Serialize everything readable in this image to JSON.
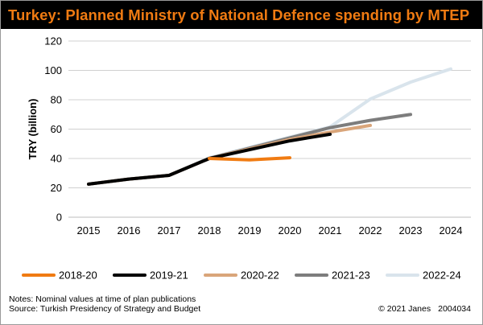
{
  "title": "Turkey: Planned Ministry of National Defence spending by MTEP",
  "notes": "Notes: Nominal values at time of plan publications",
  "source": "Source: Turkish Presidency of Strategy and Budget",
  "copyright": "© 2021 Janes",
  "image_code": "2004034",
  "chart_data": {
    "type": "line",
    "title": "Turkey: Planned Ministry of National Defence spending by MTEP",
    "xlabel": "",
    "ylabel": "TRY (billion)",
    "x": [
      "2015",
      "2016",
      "2017",
      "2018",
      "2019",
      "2020",
      "2021",
      "2022",
      "2023",
      "2024"
    ],
    "ylim": [
      0,
      120
    ],
    "yticks": [
      0,
      20,
      40,
      60,
      80,
      100,
      120
    ],
    "grid": "horizontal",
    "legend_position": "bottom",
    "series": [
      {
        "name": "2018-20",
        "color": "#f07b12",
        "x": [
          "2018",
          "2019",
          "2020"
        ],
        "values": [
          40,
          39,
          40.5
        ]
      },
      {
        "name": "2019-21",
        "color": "#000000",
        "x": [
          "2015",
          "2016",
          "2017",
          "2018",
          "2019",
          "2020",
          "2021"
        ],
        "values": [
          22.5,
          26,
          28.5,
          40,
          46,
          52,
          56.5
        ]
      },
      {
        "name": "2020-22",
        "color": "#d9a57a",
        "x": [
          "2015",
          "2016",
          "2017",
          "2018",
          "2019",
          "2020",
          "2021",
          "2022"
        ],
        "values": [
          22.5,
          26,
          28.5,
          40,
          46.5,
          53,
          58,
          62.5
        ]
      },
      {
        "name": "2021-23",
        "color": "#7d7d7d",
        "x": [
          "2015",
          "2016",
          "2017",
          "2018",
          "2019",
          "2020",
          "2021",
          "2022",
          "2023"
        ],
        "values": [
          22.5,
          26,
          28.5,
          40,
          47,
          54,
          61,
          66,
          70
        ]
      },
      {
        "name": "2022-24",
        "color": "#d9e4ec",
        "x": [
          "2015",
          "2016",
          "2017",
          "2018",
          "2019",
          "2020",
          "2021",
          "2022",
          "2023",
          "2024"
        ],
        "values": [
          22.5,
          26,
          28.5,
          40.5,
          47.5,
          54.5,
          61.5,
          80.5,
          92,
          101
        ]
      }
    ]
  }
}
